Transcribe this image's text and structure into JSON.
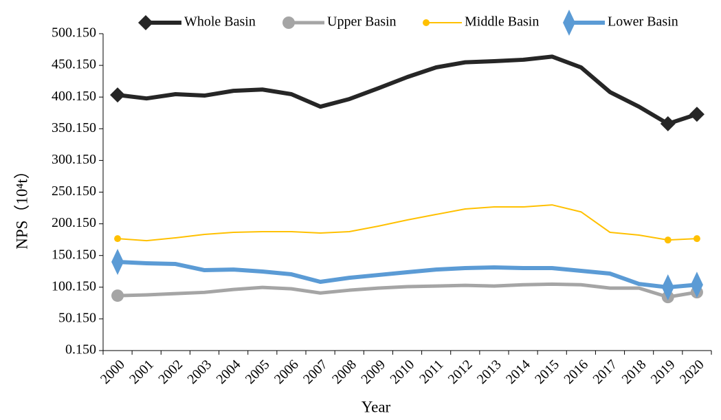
{
  "chart_data": {
    "type": "line",
    "xlabel": "Year",
    "ylabel": "NPS（10⁴t）",
    "categories": [
      "2000",
      "2001",
      "2002",
      "2003",
      "2004",
      "2005",
      "2006",
      "2007",
      "2008",
      "2009",
      "2010",
      "2011",
      "2012",
      "2013",
      "2014",
      "2015",
      "2016",
      "2017",
      "2018",
      "2019",
      "2020"
    ],
    "ylim": [
      0.15,
      500.15
    ],
    "yticks": [
      {
        "value": 0.15,
        "label": "0.150"
      },
      {
        "value": 50.15,
        "label": "50.150"
      },
      {
        "value": 100.15,
        "label": "100.150"
      },
      {
        "value": 150.15,
        "label": "150.150"
      },
      {
        "value": 200.15,
        "label": "200.150"
      },
      {
        "value": 250.15,
        "label": "250.150"
      },
      {
        "value": 300.15,
        "label": "300.150"
      },
      {
        "value": 350.15,
        "label": "350.150"
      },
      {
        "value": 400.15,
        "label": "400.150"
      },
      {
        "value": 450.15,
        "label": "450.150"
      },
      {
        "value": 500.15,
        "label": "500.150"
      }
    ],
    "grid": false,
    "legend": "top",
    "marker_indices": [
      0,
      19,
      20
    ],
    "series": [
      {
        "name": "Whole Basin",
        "color": "#262626",
        "width": 6,
        "marker": "diamond",
        "values": [
          403.5,
          398,
          404.7,
          402.5,
          410,
          412,
          404.7,
          385,
          397,
          414,
          431.7,
          447,
          455,
          456.8,
          459,
          464,
          447,
          408,
          385,
          358,
          373
        ]
      },
      {
        "name": "Upper Basin",
        "color": "#a5a5a5",
        "width": 5,
        "marker": "circle",
        "values": [
          86.8,
          88,
          90,
          92,
          96.5,
          99.8,
          97.6,
          91,
          95.4,
          98.7,
          101,
          102,
          103,
          102,
          104,
          105,
          104,
          98.7,
          98.7,
          84.6,
          92.2
        ]
      },
      {
        "name": "Middle Basin",
        "color": "#ffc000",
        "width": 2,
        "marker": "dot",
        "values": [
          176.8,
          173.5,
          178,
          183.4,
          186.7,
          187.8,
          187.8,
          185.6,
          187.8,
          196.5,
          206.2,
          215,
          223.6,
          226.8,
          226.8,
          230,
          219,
          186.7,
          182.4,
          174.6,
          176.8
        ]
      },
      {
        "name": "Lower Basin",
        "color": "#5b9bd5",
        "width": 6,
        "marker": "tall-diamond",
        "values": [
          140,
          137.9,
          136.8,
          127,
          128,
          124.9,
          120.5,
          108.6,
          115,
          119.4,
          123.8,
          128,
          130.3,
          131.4,
          130.3,
          130.3,
          126,
          121.6,
          105.3,
          100,
          104
        ]
      }
    ]
  }
}
